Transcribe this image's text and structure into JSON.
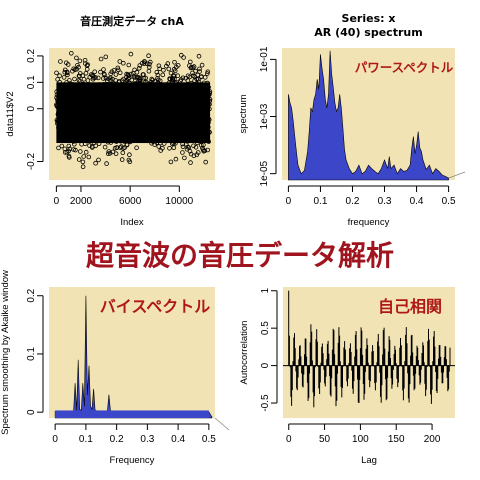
{
  "banner": "超音波の音圧データ解析",
  "colors": {
    "panel_bg": "#f1e3b4",
    "fill_blue": "#3c46c8",
    "overlay_red": "#b01818",
    "banner_red": "#a0141e"
  },
  "chart_data": [
    {
      "id": "p1",
      "type": "scatter",
      "title": "音圧測定データ chA",
      "xlabel": "Index",
      "ylabel": "data11$V2",
      "xlim": [
        -600,
        12900
      ],
      "ylim": [
        -0.27,
        0.23
      ],
      "xticks": [
        0,
        2000,
        6000,
        10000
      ],
      "yticks": [
        -0.2,
        0,
        0.1,
        0.2
      ],
      "points_count": 12500,
      "envelope": [
        -0.22,
        0.21
      ]
    },
    {
      "id": "p2",
      "type": "area",
      "title": "Series: x",
      "subtitle": "AR (40) spectrum",
      "xlabel": "frequency",
      "ylabel": "spectrum",
      "overlay": "パワースペクトル",
      "log_y": true,
      "xlim": [
        -0.02,
        0.52
      ],
      "ylim": [
        6e-06,
        0.25
      ],
      "xticks": [
        0.0,
        0.1,
        0.2,
        0.3,
        0.4,
        0.5
      ],
      "yticks": [
        0.1,
        0.001,
        1e-05
      ],
      "ytick_labels": [
        "1e-01",
        "1e-03",
        "1e-05"
      ],
      "x": [
        0.0,
        0.005,
        0.01,
        0.015,
        0.02,
        0.025,
        0.03,
        0.04,
        0.05,
        0.06,
        0.065,
        0.07,
        0.075,
        0.08,
        0.085,
        0.09,
        0.095,
        0.1,
        0.105,
        0.11,
        0.115,
        0.12,
        0.125,
        0.13,
        0.135,
        0.14,
        0.145,
        0.15,
        0.155,
        0.16,
        0.165,
        0.17,
        0.175,
        0.18,
        0.19,
        0.2,
        0.21,
        0.22,
        0.23,
        0.24,
        0.25,
        0.26,
        0.27,
        0.28,
        0.29,
        0.3,
        0.31,
        0.315,
        0.32,
        0.33,
        0.34,
        0.35,
        0.36,
        0.37,
        0.38,
        0.385,
        0.39,
        0.395,
        0.4,
        0.405,
        0.41,
        0.415,
        0.42,
        0.43,
        0.44,
        0.45,
        0.46,
        0.47,
        0.48,
        0.49,
        0.5
      ],
      "y": [
        0.006,
        0.003,
        0.002,
        0.0007,
        0.0002,
        6e-05,
        2e-05,
        1e-05,
        1.3e-05,
        6e-05,
        0.0003,
        0.002,
        0.0015,
        0.004,
        0.006,
        0.02,
        0.009,
        0.15,
        0.05,
        0.02,
        0.004,
        0.002,
        0.006,
        0.2,
        0.03,
        0.01,
        0.003,
        0.0015,
        0.002,
        0.006,
        0.002,
        0.0004,
        7e-05,
        3e-05,
        1.5e-05,
        1e-05,
        1.2e-05,
        2e-05,
        1e-05,
        1.2e-05,
        2e-05,
        1.5e-05,
        1.2e-05,
        1e-05,
        1.5e-05,
        3e-05,
        1.5e-05,
        4e-05,
        1.5e-05,
        2e-05,
        1e-05,
        1.5e-05,
        1.2e-05,
        1.3e-05,
        2e-05,
        8e-05,
        0.0002,
        5e-05,
        0.0001,
        0.0003,
        8e-05,
        6e-05,
        3e-05,
        1.4e-05,
        2e-05,
        1e-05,
        1.5e-05,
        1.2e-05,
        9e-06,
        8e-06,
        7e-06
      ]
    },
    {
      "id": "p3",
      "type": "area",
      "title": "",
      "xlabel": "Frequency",
      "ylabel": "Spectrum smoothing by Akaike window",
      "overlay": "バイスペクトル",
      "xlim": [
        -0.02,
        0.52
      ],
      "ylim": [
        -0.01,
        0.215
      ],
      "xticks": [
        0.0,
        0.1,
        0.2,
        0.3,
        0.4,
        0.5
      ],
      "yticks": [
        0.0,
        0.1,
        0.2
      ],
      "x": [
        0.0,
        0.05,
        0.06,
        0.065,
        0.07,
        0.075,
        0.08,
        0.085,
        0.09,
        0.095,
        0.1,
        0.105,
        0.11,
        0.115,
        0.12,
        0.125,
        0.13,
        0.14,
        0.15,
        0.16,
        0.17,
        0.175,
        0.18,
        0.185,
        0.19,
        0.2,
        0.3,
        0.4,
        0.45,
        0.48,
        0.5,
        0.505,
        0.51
      ],
      "y": [
        0.001,
        0.001,
        0.002,
        0.05,
        0.003,
        0.09,
        0.005,
        0.003,
        0.05,
        0.01,
        0.2,
        0.03,
        0.08,
        0.01,
        0.005,
        0.04,
        0.003,
        0.002,
        0.002,
        0.002,
        0.002,
        0.03,
        0.002,
        0.002,
        0.001,
        0.001,
        0.001,
        0.001,
        0.001,
        0.001,
        0.0005,
        -0.004,
        -0.008
      ]
    },
    {
      "id": "p4",
      "type": "bar",
      "title": "",
      "xlabel": "Lag",
      "ylabel": "Autocorrelation",
      "overlay": "自己相関",
      "xlim": [
        -8,
        232
      ],
      "ylim": [
        -0.7,
        1.05
      ],
      "xticks": [
        0,
        50,
        100,
        150,
        200
      ],
      "yticks": [
        -0.5,
        0.0,
        0.5,
        1.0
      ],
      "lags": 225,
      "period": 7.8,
      "decay": 0.0006,
      "base": 0.58
    }
  ]
}
